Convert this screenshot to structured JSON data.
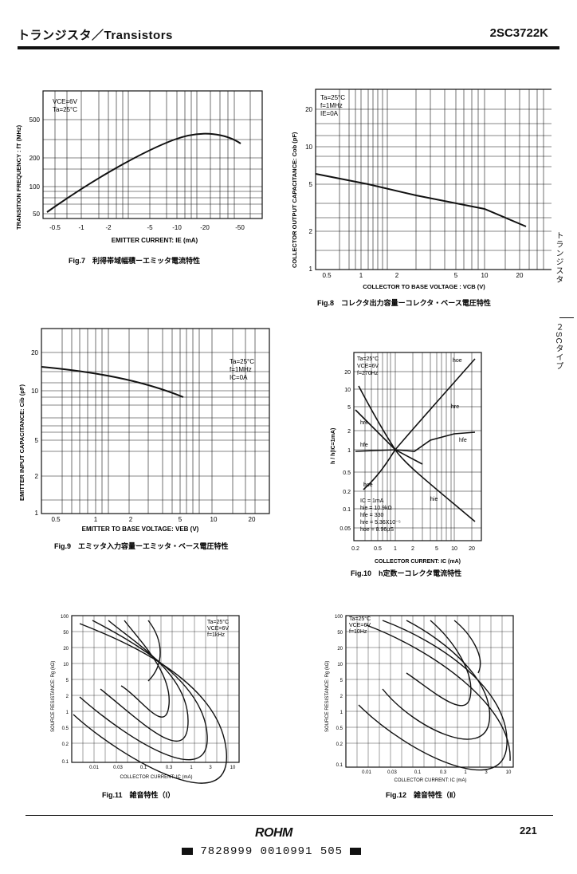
{
  "header": {
    "title": "トランジスタ／Transistors",
    "part": "2SC3722K"
  },
  "side": {
    "upper": "トランジスタ",
    "lower": "２SCタイプ"
  },
  "fig7": {
    "caption": "Fig.7　利得帯域幅積ーエミッタ電流特性",
    "ylabel": "TRANSITION FREQUENCY : fT (MHz)",
    "xlabel": "EMITTER CURRENT: IE (mA)",
    "cond1": "VCE=6V",
    "cond2": "Ta=25°C",
    "yticks": [
      "500",
      "200",
      "100",
      "50"
    ],
    "xticks": [
      "-0.5",
      "-1",
      "-2",
      "-5",
      "-10",
      "-20",
      "-50"
    ]
  },
  "fig8": {
    "caption": "Fig.8　コレクタ出力容量ーコレクタ・ベース電圧特性",
    "ylabel": "COLLECTOR OUTPUT CAPACITANCE: Cob (pF)",
    "xlabel": "COLLECTOR TO BASE VOLTAGE : VCB (V)",
    "cond1": "Ta=25°C",
    "cond2": "f=1MHz",
    "cond3": "IE=0A",
    "yticks": [
      "20",
      "10",
      "5",
      "2",
      "1"
    ],
    "xticks": [
      "0.5",
      "1",
      "2",
      "5",
      "10",
      "20"
    ]
  },
  "fig9": {
    "caption": "Fig.9　エミッタ入力容量ーエミッタ・ベース電圧特性",
    "ylabel": "EMITTER INPUT CAPACITANCE: Cib (pF)",
    "xlabel": "EMITTER TO BASE VOLTAGE: VEB (V)",
    "cond1": "Ta=25°C",
    "cond2": "f=1MHz",
    "cond3": "IC=0A",
    "yticks": [
      "20",
      "10",
      "5",
      "2",
      "1"
    ],
    "xticks": [
      "0.5",
      "1",
      "2",
      "5",
      "10",
      "20"
    ]
  },
  "fig10": {
    "caption": "Fig.10　h定数ーコレクタ電流特性",
    "ylabel": "h / h(IC=1mA)",
    "xlabel": "COLLECTOR CURRENT: IC (mA)",
    "cond1": "Ta=25°C",
    "cond2": "VCE=6V",
    "cond3": "f=270Hz",
    "ref1": "IC = 1mA",
    "ref2": "hie = 10.9kΩ",
    "ref3": "hfe = 330",
    "ref4": "hre = 5.36X10⁻⁵",
    "ref5": "hoe = 8.96μS",
    "curve_hie": "hie",
    "curve_hfe": "hfe",
    "curve_hre": "hre",
    "curve_hoe": "hoe",
    "yticks": [
      "20",
      "10",
      "5",
      "2",
      "1",
      "0.5",
      "0.2",
      "0.1",
      "0.05"
    ],
    "xticks": [
      "0.2",
      "0.5",
      "1",
      "2",
      "5",
      "10",
      "20"
    ]
  },
  "fig11": {
    "caption": "Fig.11　雑音特性（Ⅰ）",
    "ylabel": "SOURCE RESISTANCE: Rg (kΩ)",
    "xlabel": "COLLECTOR CURRENT: IC (mA)",
    "cond1": "Ta=25°C",
    "cond2": "VCE=6V",
    "cond3": "f=1kHz",
    "yticks": [
      "100",
      "50",
      "20",
      "10",
      "5",
      "2",
      "1",
      "0.5",
      "0.2",
      "0.1"
    ],
    "xticks": [
      "0.01",
      "0.03",
      "0.1",
      "0.3",
      "1",
      "3",
      "10"
    ]
  },
  "fig12": {
    "caption": "Fig.12　雑音特性（Ⅱ）",
    "ylabel": "SOURCE RESISTANCE: Rg (kΩ)",
    "xlabel": "COLLECTOR CURRENT: IC (mA)",
    "cond1": "Ta=25°C",
    "cond2": "VCE=6V",
    "cond3": "f=10Hz",
    "yticks": [
      "100",
      "50",
      "20",
      "10",
      "5",
      "2",
      "1",
      "0.5",
      "0.2",
      "0.1"
    ],
    "xticks": [
      "0.01",
      "0.03",
      "0.1",
      "0.3",
      "1",
      "3",
      "10"
    ]
  },
  "footer": {
    "logo": "ROHM",
    "page": "221",
    "barcode": "7828999 0010991 505"
  }
}
